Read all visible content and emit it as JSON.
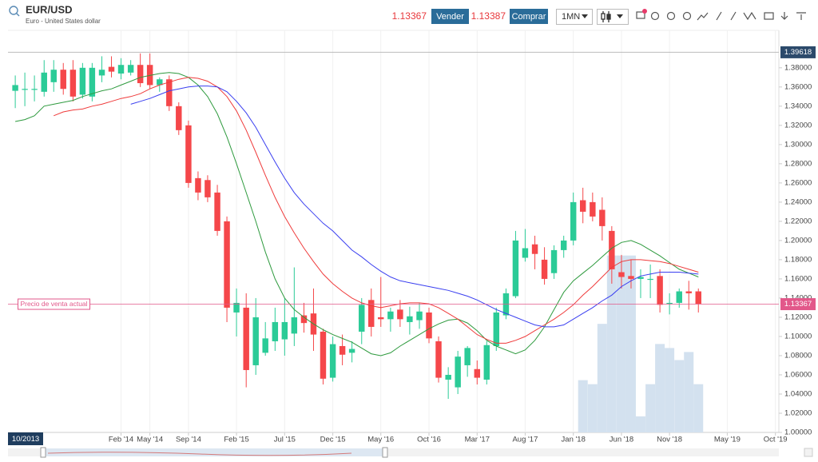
{
  "header": {
    "sell_price": "1.13367",
    "sell": "Vender",
    "buy_price": "1.13387",
    "buy": "Comprar",
    "interval": "1MN"
  },
  "chart_data": {
    "type": "candlestick",
    "title": "EUR/USD",
    "subtitle": "Euro - United States dollar",
    "cursor_label": "10/2013",
    "up_color": "#2bcb97",
    "down_color": "#f5474a",
    "xlim": [
      2013.104,
      2019.78
    ],
    "xticks": [
      {
        "value": 2014.083,
        "label": "Feb '14"
      },
      {
        "value": 2014.333,
        "label": "May '14"
      },
      {
        "value": 2014.667,
        "label": "Sep '14"
      },
      {
        "value": 2015.083,
        "label": "Feb '15"
      },
      {
        "value": 2015.5,
        "label": "Jul '15"
      },
      {
        "value": 2015.917,
        "label": "Dec '15"
      },
      {
        "value": 2016.333,
        "label": "May '16"
      },
      {
        "value": 2016.75,
        "label": "Oct '16"
      },
      {
        "value": 2017.167,
        "label": "Mar '17"
      },
      {
        "value": 2017.583,
        "label": "Aug '17"
      },
      {
        "value": 2018.0,
        "label": "Jan '18"
      },
      {
        "value": 2018.417,
        "label": "Jun '18"
      },
      {
        "value": 2018.833,
        "label": "Nov '18"
      },
      {
        "value": 2019.333,
        "label": "May '19"
      },
      {
        "value": 2019.75,
        "label": "Oct '19"
      }
    ],
    "ylim": [
      1.0,
      1.419
    ],
    "yticks": [
      {
        "value": 1.0,
        "label": "1.00000"
      },
      {
        "value": 1.02,
        "label": "1.02000"
      },
      {
        "value": 1.04,
        "label": "1.04000"
      },
      {
        "value": 1.06,
        "label": "1.06000"
      },
      {
        "value": 1.08,
        "label": "1.08000"
      },
      {
        "value": 1.1,
        "label": "1.10000"
      },
      {
        "value": 1.12,
        "label": "1.12000"
      },
      {
        "value": 1.14,
        "label": "1.14000"
      },
      {
        "value": 1.16,
        "label": "1.16000"
      },
      {
        "value": 1.18,
        "label": "1.18000"
      },
      {
        "value": 1.2,
        "label": "1.20000"
      },
      {
        "value": 1.22,
        "label": "1.22000"
      },
      {
        "value": 1.24,
        "label": "1.24000"
      },
      {
        "value": 1.26,
        "label": "1.26000"
      },
      {
        "value": 1.28,
        "label": "1.28000"
      },
      {
        "value": 1.3,
        "label": "1.30000"
      },
      {
        "value": 1.32,
        "label": "1.32000"
      },
      {
        "value": 1.34,
        "label": "1.34000"
      },
      {
        "value": 1.36,
        "label": "1.36000"
      },
      {
        "value": 1.38,
        "label": "1.38000"
      }
    ],
    "high_line": {
      "value": 1.39618,
      "label": "1.39618"
    },
    "current_line": {
      "value": 1.13367,
      "label": "1.13367",
      "text": "Precio de venta actual"
    },
    "x": [
      2013.167,
      2013.25,
      2013.333,
      2013.417,
      2013.5,
      2013.583,
      2013.667,
      2013.75,
      2013.833,
      2013.917,
      2014.0,
      2014.083,
      2014.167,
      2014.25,
      2014.333,
      2014.417,
      2014.5,
      2014.583,
      2014.667,
      2014.75,
      2014.833,
      2014.917,
      2015.0,
      2015.083,
      2015.167,
      2015.25,
      2015.333,
      2015.417,
      2015.5,
      2015.583,
      2015.667,
      2015.75,
      2015.833,
      2015.917,
      2016.0,
      2016.083,
      2016.167,
      2016.25,
      2016.333,
      2016.417,
      2016.5,
      2016.583,
      2016.667,
      2016.75,
      2016.833,
      2016.917,
      2017.0,
      2017.083,
      2017.167,
      2017.25,
      2017.333,
      2017.417,
      2017.5,
      2017.583,
      2017.667,
      2017.75,
      2017.833,
      2017.917,
      2018.0,
      2018.083,
      2018.167,
      2018.25,
      2018.333,
      2018.417,
      2018.5,
      2018.583,
      2018.667,
      2018.75,
      2018.833,
      2018.917,
      2019.0,
      2019.083
    ],
    "open": [
      1.356,
      1.358,
      1.358,
      1.355,
      1.365,
      1.378,
      1.378,
      1.352,
      1.35,
      1.372,
      1.381,
      1.374,
      1.375,
      1.383,
      1.383,
      1.362,
      1.368,
      1.34,
      1.32,
      1.265,
      1.263,
      1.25,
      1.22,
      1.125,
      1.13,
      1.07,
      1.083,
      1.095,
      1.097,
      1.103,
      1.122,
      1.124,
      1.105,
      1.057,
      1.09,
      1.083,
      1.105,
      1.138,
      1.12,
      1.118,
      1.128,
      1.115,
      1.117,
      1.125,
      1.095,
      1.055,
      1.047,
      1.07,
      1.066,
      1.055,
      1.09,
      1.122,
      1.142,
      1.182,
      1.196,
      1.18,
      1.166,
      1.19,
      1.2,
      1.242,
      1.24,
      1.232,
      1.21,
      1.167,
      1.163,
      1.16,
      1.16,
      1.163,
      1.135,
      1.135,
      1.147,
      1.147
    ],
    "close": [
      1.362,
      1.358,
      1.358,
      1.375,
      1.378,
      1.358,
      1.35,
      1.38,
      1.38,
      1.378,
      1.376,
      1.383,
      1.383,
      1.364,
      1.362,
      1.368,
      1.34,
      1.315,
      1.26,
      1.25,
      1.245,
      1.21,
      1.13,
      1.135,
      1.065,
      1.12,
      1.098,
      1.115,
      1.115,
      1.12,
      1.114,
      1.102,
      1.056,
      1.092,
      1.081,
      1.087,
      1.133,
      1.11,
      1.118,
      1.126,
      1.118,
      1.121,
      1.126,
      1.098,
      1.057,
      1.06,
      1.079,
      1.088,
      1.057,
      1.091,
      1.125,
      1.145,
      1.2,
      1.192,
      1.186,
      1.16,
      1.19,
      1.2,
      1.24,
      1.23,
      1.225,
      1.215,
      1.17,
      1.162,
      1.16,
      1.162,
      1.16,
      1.133,
      1.135,
      1.147,
      1.145,
      1.134
    ],
    "high": [
      1.372,
      1.375,
      1.372,
      1.388,
      1.388,
      1.385,
      1.388,
      1.385,
      1.385,
      1.392,
      1.392,
      1.39,
      1.388,
      1.395,
      1.395,
      1.37,
      1.372,
      1.344,
      1.325,
      1.272,
      1.268,
      1.258,
      1.225,
      1.15,
      1.145,
      1.14,
      1.115,
      1.13,
      1.14,
      1.172,
      1.135,
      1.15,
      1.108,
      1.1,
      1.102,
      1.095,
      1.14,
      1.15,
      1.162,
      1.13,
      1.138,
      1.131,
      1.135,
      1.13,
      1.1,
      1.068,
      1.085,
      1.09,
      1.075,
      1.095,
      1.13,
      1.15,
      1.21,
      1.212,
      1.205,
      1.193,
      1.195,
      1.205,
      1.25,
      1.255,
      1.25,
      1.245,
      1.215,
      1.185,
      1.18,
      1.17,
      1.175,
      1.17,
      1.145,
      1.15,
      1.158,
      1.15
    ],
    "low": [
      1.338,
      1.34,
      1.345,
      1.35,
      1.355,
      1.352,
      1.345,
      1.348,
      1.345,
      1.365,
      1.37,
      1.368,
      1.372,
      1.36,
      1.358,
      1.355,
      1.335,
      1.31,
      1.255,
      1.242,
      1.24,
      1.205,
      1.115,
      1.1,
      1.047,
      1.06,
      1.08,
      1.085,
      1.08,
      1.09,
      1.104,
      1.085,
      1.05,
      1.053,
      1.07,
      1.073,
      1.092,
      1.1,
      1.11,
      1.105,
      1.11,
      1.102,
      1.108,
      1.093,
      1.052,
      1.035,
      1.04,
      1.058,
      1.05,
      1.05,
      1.085,
      1.118,
      1.14,
      1.178,
      1.17,
      1.154,
      1.16,
      1.182,
      1.195,
      1.218,
      1.22,
      1.2,
      1.155,
      1.15,
      1.15,
      1.14,
      1.14,
      1.125,
      1.123,
      1.13,
      1.128,
      1.125
    ],
    "lines": [
      {
        "color": "#2e9a3e",
        "values": [
          1.324,
          1.326,
          1.33,
          1.34,
          1.342,
          1.344,
          1.346,
          1.35,
          1.353,
          1.356,
          1.358,
          1.362,
          1.366,
          1.37,
          1.372,
          1.374,
          1.375,
          1.374,
          1.37,
          1.362,
          1.35,
          1.332,
          1.308,
          1.28,
          1.25,
          1.22,
          1.188,
          1.16,
          1.14,
          1.128,
          1.12,
          1.113,
          1.107,
          1.102,
          1.098,
          1.094,
          1.088,
          1.082,
          1.08,
          1.083,
          1.09,
          1.096,
          1.102,
          1.108,
          1.113,
          1.117,
          1.118,
          1.114,
          1.106,
          1.096,
          1.09,
          1.086,
          1.082,
          1.086,
          1.096,
          1.11,
          1.128,
          1.146,
          1.158,
          1.166,
          1.174,
          1.183,
          1.192,
          1.198,
          1.2,
          1.196,
          1.19,
          1.184,
          1.177,
          1.17,
          1.166,
          1.162
        ]
      },
      {
        "color": "#ef3b3b",
        "values": [
          null,
          null,
          null,
          null,
          1.33,
          1.334,
          1.336,
          1.337,
          1.34,
          1.342,
          1.345,
          1.348,
          1.35,
          1.353,
          1.358,
          1.362,
          1.365,
          1.368,
          1.37,
          1.369,
          1.366,
          1.36,
          1.35,
          1.335,
          1.315,
          1.292,
          1.268,
          1.245,
          1.225,
          1.208,
          1.192,
          1.178,
          1.165,
          1.155,
          1.147,
          1.14,
          1.135,
          1.132,
          1.13,
          1.132,
          1.134,
          1.135,
          1.135,
          1.134,
          1.13,
          1.124,
          1.118,
          1.11,
          1.102,
          1.097,
          1.093,
          1.093,
          1.096,
          1.1,
          1.106,
          1.112,
          1.118,
          1.125,
          1.133,
          1.143,
          1.152,
          1.162,
          1.172,
          1.178,
          1.18,
          1.18,
          1.179,
          1.178,
          1.176,
          1.173,
          1.17,
          1.167
        ]
      },
      {
        "color": "#3a3ff0",
        "values": [
          null,
          null,
          null,
          null,
          null,
          null,
          null,
          null,
          null,
          null,
          null,
          null,
          1.342,
          1.345,
          1.348,
          1.352,
          1.356,
          1.358,
          1.36,
          1.361,
          1.361,
          1.36,
          1.355,
          1.345,
          1.333,
          1.318,
          1.3,
          1.282,
          1.265,
          1.25,
          1.238,
          1.228,
          1.218,
          1.21,
          1.2,
          1.19,
          1.183,
          1.175,
          1.168,
          1.162,
          1.158,
          1.156,
          1.154,
          1.152,
          1.15,
          1.148,
          1.145,
          1.142,
          1.138,
          1.133,
          1.128,
          1.124,
          1.12,
          1.116,
          1.112,
          1.11,
          1.11,
          1.112,
          1.118,
          1.124,
          1.13,
          1.137,
          1.143,
          1.152,
          1.158,
          1.163,
          1.165,
          1.167,
          1.167,
          1.167,
          1.166,
          1.165
        ]
      }
    ],
    "volume": {
      "color": "#d3e1ef",
      "values": [
        null,
        null,
        null,
        null,
        null,
        null,
        null,
        null,
        null,
        null,
        null,
        null,
        null,
        null,
        null,
        null,
        null,
        null,
        null,
        null,
        null,
        null,
        null,
        null,
        null,
        null,
        null,
        null,
        null,
        null,
        null,
        null,
        null,
        null,
        null,
        null,
        null,
        null,
        null,
        null,
        null,
        null,
        null,
        null,
        null,
        null,
        null,
        null,
        null,
        null,
        null,
        null,
        null,
        null,
        null,
        null,
        null,
        null,
        null,
        13,
        12,
        27,
        44,
        44,
        44,
        4,
        12,
        22,
        21,
        18,
        20,
        12
      ]
    }
  }
}
